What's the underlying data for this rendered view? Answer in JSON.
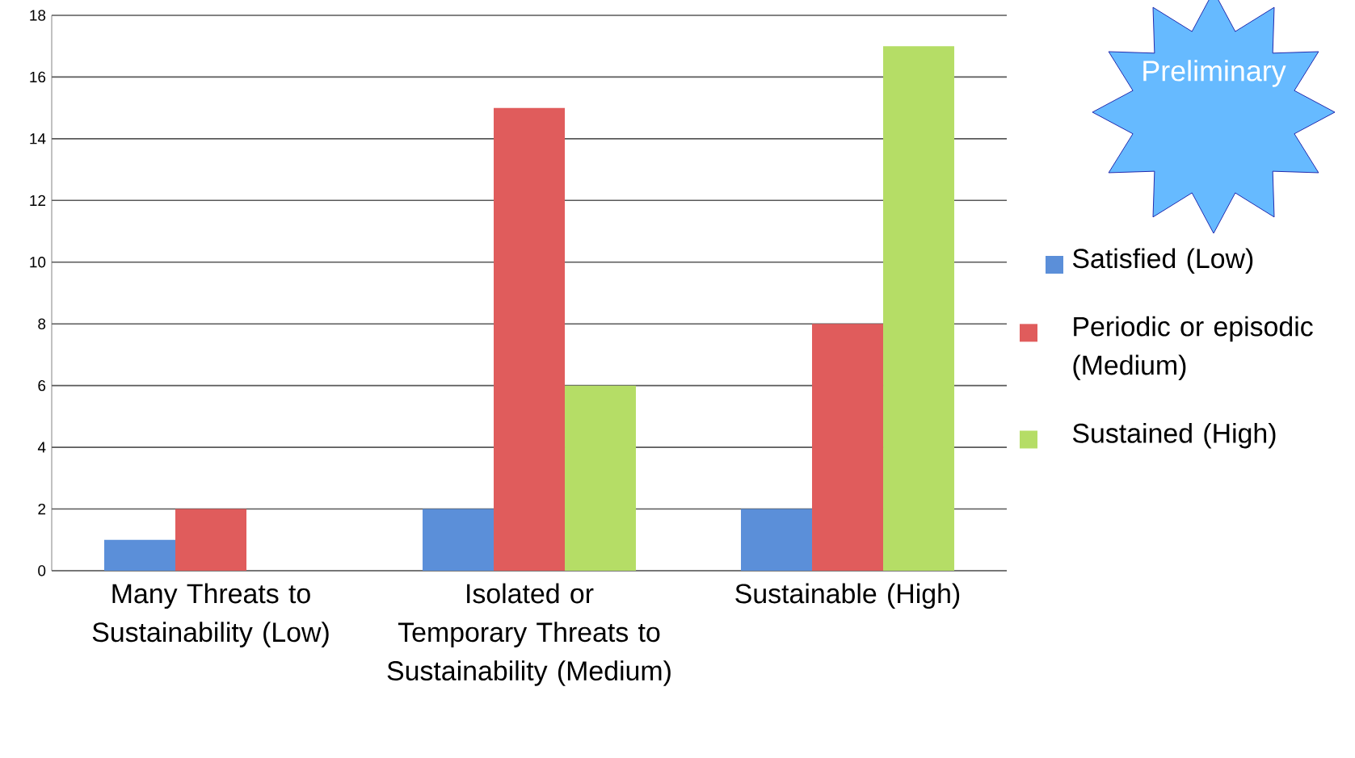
{
  "chart_data": {
    "type": "bar",
    "categories": [
      "Many Threats to Sustainability (Low)",
      "Isolated or Temporary Threats to Sustainability (Medium)",
      "Sustainable (High)"
    ],
    "series": [
      {
        "name": "Satisfied (Low)",
        "color": "#5b8fd9",
        "values": [
          1,
          2,
          2
        ]
      },
      {
        "name": "Periodic or episodic (Medium)",
        "color": "#e05c5c",
        "values": [
          2,
          15,
          8
        ]
      },
      {
        "name": "Sustained (High)",
        "color": "#b5dd66",
        "values": [
          null,
          6,
          17
        ]
      }
    ],
    "ylim": [
      0,
      18
    ],
    "yticks": [
      0,
      2,
      4,
      6,
      8,
      10,
      12,
      14,
      16,
      18
    ],
    "grid": "y",
    "legend": "right",
    "annotations": [
      "Preliminary"
    ]
  }
}
